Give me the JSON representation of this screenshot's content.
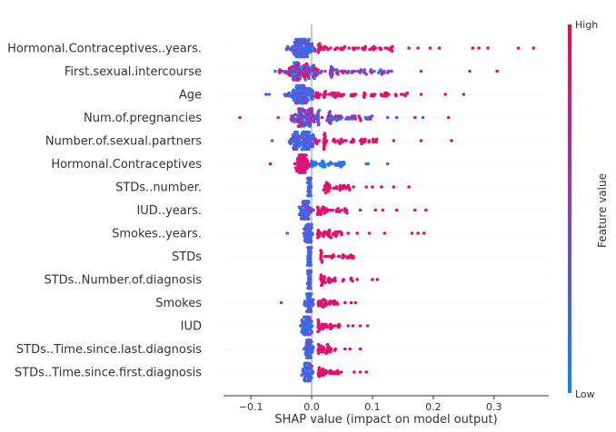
{
  "chart_data": {
    "type": "scatter",
    "subtype": "shap-beeswarm",
    "xlabel": "SHAP value (impact on model output)",
    "xlim": [
      -0.145,
      0.39
    ],
    "xticks": [
      -0.1,
      0.0,
      0.1,
      0.2,
      0.3
    ],
    "xtick_labels": [
      "−0.1",
      "0.0",
      "0.1",
      "0.2",
      "0.3"
    ],
    "zero_line": 0.0,
    "colorbar": {
      "high_label": "High",
      "low_label": "Low",
      "title": "Feature value",
      "low_color": "#008bfb",
      "high_color": "#ff0052"
    },
    "features": [
      {
        "name": "Hormonal.Contraceptives..years.",
        "core": [
          -0.045,
          0.01
        ],
        "tail": [
          0.01,
          0.14
        ],
        "outliers": [
          0.16,
          0.175,
          0.195,
          0.21,
          0.265,
          0.275,
          0.29,
          0.34,
          0.365
        ],
        "n": 170,
        "color_mode": "pos_high"
      },
      {
        "name": "First.sexual.intercourse",
        "core": [
          -0.06,
          0.03
        ],
        "tail": [
          0.03,
          0.14
        ],
        "outliers": [
          -0.06,
          0.18,
          0.26,
          0.305
        ],
        "n": 170,
        "color_mode": "mixed"
      },
      {
        "name": "Age",
        "core": [
          -0.05,
          0.02
        ],
        "tail": [
          0.02,
          0.16
        ],
        "outliers": [
          -0.075,
          -0.07,
          0.18,
          0.22,
          0.25
        ],
        "n": 170,
        "color_mode": "pos_high"
      },
      {
        "name": "Num.of.pregnancies",
        "core": [
          -0.045,
          0.025
        ],
        "tail": [
          0.025,
          0.1
        ],
        "outliers": [
          -0.118,
          -0.055,
          0.125,
          0.14,
          0.17,
          0.183,
          0.225
        ],
        "n": 160,
        "color_mode": "mixed"
      },
      {
        "name": "Number.of.sexual.partners",
        "core": [
          -0.05,
          0.02
        ],
        "tail": [
          0.02,
          0.11
        ],
        "outliers": [
          -0.065,
          0.135,
          0.18,
          0.23
        ],
        "n": 160,
        "color_mode": "pos_high"
      },
      {
        "name": "Hormonal.Contraceptives",
        "core": [
          -0.03,
          0.0
        ],
        "tail": [
          0.0,
          0.06
        ],
        "outliers": [
          -0.068,
          0.09,
          0.093,
          0.125
        ],
        "n": 120,
        "color_mode": "neg_high"
      },
      {
        "name": "STDs..number.",
        "core": [
          -0.008,
          0.0
        ],
        "tail": [
          0.02,
          0.07
        ],
        "outliers": [
          0.09,
          0.1,
          0.115,
          0.135,
          0.16
        ],
        "n": 110,
        "color_mode": "pos_high"
      },
      {
        "name": "IUD..years.",
        "core": [
          -0.025,
          0.005
        ],
        "tail": [
          0.01,
          0.06
        ],
        "outliers": [
          0.08,
          0.105,
          0.117,
          0.14,
          0.17,
          0.188
        ],
        "n": 110,
        "color_mode": "pos_high"
      },
      {
        "name": "Smokes..years.",
        "core": [
          -0.015,
          0.005
        ],
        "tail": [
          0.01,
          0.05
        ],
        "outliers": [
          -0.04,
          0.06,
          0.075,
          0.095,
          0.12,
          0.165,
          0.175,
          0.185
        ],
        "n": 110,
        "color_mode": "pos_high"
      },
      {
        "name": "STDs",
        "core": [
          -0.008,
          0.0
        ],
        "tail": [
          0.015,
          0.07
        ],
        "outliers": [],
        "n": 100,
        "color_mode": "pos_high"
      },
      {
        "name": "STDs..Number.of.diagnosis",
        "core": [
          -0.008,
          0.0
        ],
        "tail": [
          0.015,
          0.08
        ],
        "outliers": [
          0.1,
          0.108
        ],
        "n": 100,
        "color_mode": "pos_high"
      },
      {
        "name": "Smokes",
        "core": [
          -0.015,
          0.005
        ],
        "tail": [
          0.01,
          0.045
        ],
        "outliers": [
          -0.05,
          0.055,
          0.065,
          0.072
        ],
        "n": 100,
        "color_mode": "pos_high"
      },
      {
        "name": "IUD",
        "core": [
          -0.02,
          0.005
        ],
        "tail": [
          0.01,
          0.05
        ],
        "outliers": [
          0.06,
          0.068,
          0.08,
          0.092
        ],
        "n": 100,
        "color_mode": "pos_high"
      },
      {
        "name": "STDs..Time.since.last.diagnosis",
        "core": [
          -0.015,
          0.005
        ],
        "tail": [
          0.01,
          0.04
        ],
        "outliers": [
          0.055,
          0.063,
          0.08
        ],
        "n": 100,
        "color_mode": "pos_high"
      },
      {
        "name": "STDs..Time.since.first.diagnosis",
        "core": [
          -0.018,
          0.005
        ],
        "tail": [
          0.01,
          0.06
        ],
        "outliers": [
          0.07,
          0.08,
          0.09
        ],
        "n": 100,
        "color_mode": "pos_high"
      }
    ]
  }
}
